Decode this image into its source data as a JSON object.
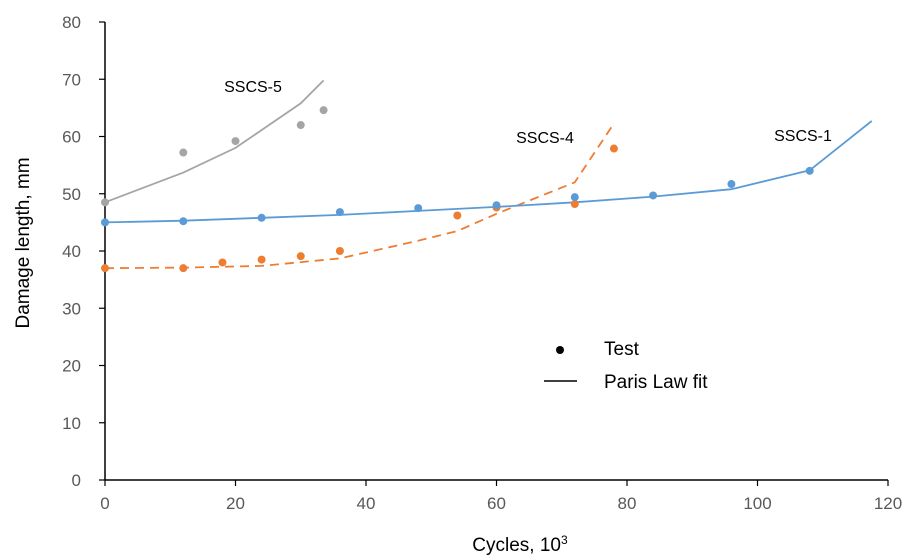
{
  "chart_data": {
    "type": "line",
    "xlabel": "Cycles, 10",
    "xlabel_sup": "3",
    "ylabel": "Damage length,  mm",
    "xlim": [
      0,
      120
    ],
    "ylim": [
      0,
      80
    ],
    "x_ticks": [
      0,
      20,
      40,
      60,
      80,
      100,
      120
    ],
    "y_ticks": [
      0,
      10,
      20,
      30,
      40,
      50,
      60,
      70,
      80
    ],
    "grid": false,
    "legend": {
      "placement": "center-right",
      "entries": [
        {
          "label": "Test",
          "marker": "dot"
        },
        {
          "label": "Paris Law fit",
          "marker": "line"
        }
      ]
    },
    "series": [
      {
        "name": "SSCS-5",
        "color": "#a5a5a5",
        "fit_style": "solid",
        "test_x": [
          0,
          12,
          20,
          30,
          33.5
        ],
        "test_y": [
          48.5,
          57.2,
          59.2,
          62.0,
          64.6
        ],
        "fit_x": [
          0,
          12,
          20,
          30,
          33.5
        ],
        "fit_y": [
          48.5,
          53.7,
          58.0,
          65.8,
          69.8
        ]
      },
      {
        "name": "SSCS-4",
        "color": "#ed7d31",
        "fit_style": "dashed",
        "test_x": [
          0,
          12,
          18,
          24,
          30,
          36,
          54,
          60,
          72,
          78
        ],
        "test_y": [
          37.0,
          37.0,
          38.0,
          38.5,
          39.1,
          40.0,
          46.2,
          47.6,
          48.2,
          57.9
        ],
        "fit_x": [
          0,
          12,
          24,
          36,
          48,
          54,
          60,
          72,
          78
        ],
        "fit_y": [
          37.0,
          37.1,
          37.4,
          38.7,
          41.8,
          43.5,
          46.5,
          52.0,
          62.3
        ]
      },
      {
        "name": "SSCS-1",
        "color": "#5b9bd5",
        "fit_style": "solid",
        "test_x": [
          0,
          12,
          24,
          36,
          48,
          60,
          72,
          84,
          96,
          108
        ],
        "test_y": [
          45.0,
          45.2,
          45.8,
          46.8,
          47.5,
          48.0,
          49.4,
          49.7,
          51.7,
          54.0
        ],
        "fit_x": [
          0,
          12,
          24,
          36,
          48,
          60,
          72,
          84,
          96,
          108,
          117.5
        ],
        "fit_y": [
          45.0,
          45.3,
          45.8,
          46.3,
          47.0,
          47.7,
          48.5,
          49.5,
          50.8,
          54.1,
          62.7
        ]
      }
    ]
  }
}
